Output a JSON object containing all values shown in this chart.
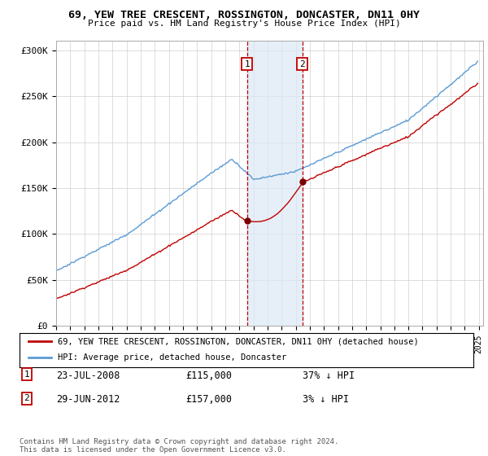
{
  "title": "69, YEW TREE CRESCENT, ROSSINGTON, DONCASTER, DN11 0HY",
  "subtitle": "Price paid vs. HM Land Registry's House Price Index (HPI)",
  "legend_line1": "69, YEW TREE CRESCENT, ROSSINGTON, DONCASTER, DN11 0HY (detached house)",
  "legend_line2": "HPI: Average price, detached house, Doncaster",
  "transaction1_date": "23-JUL-2008",
  "transaction1_price": 115000,
  "transaction1_pct": "37% ↓ HPI",
  "transaction2_date": "29-JUN-2012",
  "transaction2_price": 157000,
  "transaction2_pct": "3% ↓ HPI",
  "footnote": "Contains HM Land Registry data © Crown copyright and database right 2024.\nThis data is licensed under the Open Government Licence v3.0.",
  "hpi_color": "#5b9bd5",
  "price_color": "#c00000",
  "marker_color": "#7b0000",
  "vline_color": "#c00000",
  "shade_color": "#dce9f5",
  "ylim": [
    0,
    310000
  ],
  "yticks": [
    0,
    50000,
    100000,
    150000,
    200000,
    250000,
    300000
  ],
  "t1_year": 2008.54,
  "t2_year": 2012.46
}
